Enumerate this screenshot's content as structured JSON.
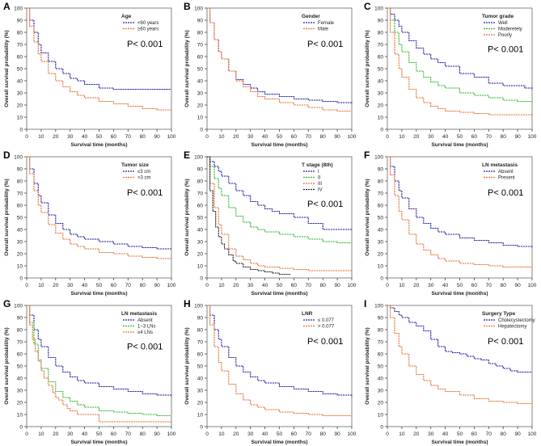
{
  "figure": {
    "x_ticks": [
      "0",
      "10",
      "20",
      "30",
      "40",
      "50",
      "60",
      "70",
      "80",
      "90",
      "100"
    ],
    "y_ticks": [
      "0",
      "10",
      "20",
      "30",
      "40",
      "50",
      "60",
      "70",
      "80",
      "90",
      "100"
    ]
  },
  "chart_data": [
    {
      "panel": "A",
      "type": "line",
      "xlabel": "Survival time (months)",
      "ylabel": "Overall survival probability (%)",
      "xlim": [
        0,
        100
      ],
      "ylim": [
        0,
        100
      ],
      "legend_title": "Age",
      "pvalue": "P< 0.001",
      "series": [
        {
          "name": "<60 years",
          "color": "#2222aa",
          "x": [
            0,
            2,
            5,
            8,
            10,
            15,
            20,
            25,
            30,
            35,
            40,
            50,
            60,
            70,
            80,
            90,
            100
          ],
          "y": [
            100,
            90,
            80,
            70,
            63,
            56,
            50,
            46,
            42,
            40,
            37,
            34,
            33,
            33,
            33,
            33,
            33
          ]
        },
        {
          "name": "≥60 years",
          "color": "#e8733a",
          "x": [
            0,
            2,
            5,
            8,
            10,
            15,
            20,
            25,
            30,
            35,
            40,
            50,
            60,
            70,
            80,
            90,
            100
          ],
          "y": [
            100,
            85,
            72,
            62,
            56,
            46,
            40,
            35,
            31,
            28,
            26,
            23,
            21,
            19,
            17,
            16,
            15
          ]
        }
      ]
    },
    {
      "panel": "B",
      "type": "line",
      "xlabel": "Survival time (months)",
      "ylabel": "Overall survival probability (%)",
      "xlim": [
        0,
        100
      ],
      "ylim": [
        0,
        100
      ],
      "legend_title": "Gender",
      "pvalue": "P< 0.001",
      "series": [
        {
          "name": "Female",
          "color": "#2222aa",
          "x": [
            0,
            2,
            5,
            8,
            10,
            15,
            20,
            25,
            30,
            35,
            40,
            50,
            60,
            70,
            80,
            90,
            100
          ],
          "y": [
            100,
            88,
            74,
            64,
            58,
            48,
            41,
            37,
            34,
            31,
            29,
            27,
            25,
            24,
            23,
            22,
            21
          ]
        },
        {
          "name": "Male",
          "color": "#e8733a",
          "x": [
            0,
            2,
            5,
            8,
            10,
            15,
            20,
            25,
            30,
            35,
            40,
            50,
            60,
            70,
            80,
            90,
            100
          ],
          "y": [
            100,
            88,
            74,
            64,
            58,
            48,
            40,
            35,
            31,
            27,
            25,
            22,
            20,
            18,
            16,
            15,
            14
          ]
        }
      ]
    },
    {
      "panel": "C",
      "type": "line",
      "xlabel": "Survival time (months)",
      "ylabel": "Overall survival probability (%)",
      "xlim": [
        0,
        100
      ],
      "ylim": [
        0,
        100
      ],
      "legend_title": "Tumor grade",
      "pvalue": "P< 0.001",
      "series": [
        {
          "name": "Well",
          "color": "#2222aa",
          "x": [
            0,
            2,
            5,
            8,
            10,
            15,
            20,
            25,
            30,
            35,
            40,
            50,
            60,
            70,
            80,
            90,
            95,
            100
          ],
          "y": [
            100,
            95,
            90,
            85,
            80,
            73,
            67,
            62,
            58,
            55,
            52,
            46,
            43,
            38,
            36,
            36,
            34,
            33
          ]
        },
        {
          "name": "Moderetely",
          "color": "#33bb33",
          "x": [
            0,
            2,
            5,
            8,
            10,
            15,
            20,
            25,
            30,
            35,
            40,
            50,
            60,
            70,
            80,
            90,
            100
          ],
          "y": [
            100,
            90,
            80,
            70,
            64,
            55,
            48,
            43,
            39,
            36,
            34,
            30,
            28,
            26,
            24,
            23,
            22
          ]
        },
        {
          "name": "Poorly",
          "color": "#e8733a",
          "x": [
            0,
            2,
            5,
            8,
            10,
            15,
            20,
            25,
            30,
            35,
            40,
            50,
            60,
            70,
            80,
            90,
            100
          ],
          "y": [
            100,
            80,
            62,
            50,
            43,
            33,
            26,
            22,
            19,
            17,
            15,
            14,
            13,
            12,
            12,
            12,
            12
          ]
        }
      ]
    },
    {
      "panel": "D",
      "type": "line",
      "xlabel": "Survival time (months)",
      "ylabel": "Overall survival probability (%)",
      "xlim": [
        0,
        100
      ],
      "ylim": [
        0,
        100
      ],
      "legend_title": "Tumor size",
      "pvalue": "P< 0.001",
      "series": [
        {
          "name": "≤3 cm",
          "color": "#2222aa",
          "x": [
            0,
            2,
            5,
            8,
            10,
            15,
            20,
            25,
            30,
            35,
            40,
            50,
            60,
            70,
            80,
            90,
            100
          ],
          "y": [
            100,
            90,
            78,
            68,
            62,
            52,
            45,
            40,
            36,
            34,
            32,
            30,
            28,
            26,
            25,
            24,
            24
          ]
        },
        {
          "name": ">3 cm",
          "color": "#e8733a",
          "x": [
            0,
            2,
            5,
            8,
            10,
            15,
            20,
            25,
            30,
            35,
            40,
            50,
            60,
            70,
            80,
            90,
            100
          ],
          "y": [
            100,
            86,
            72,
            60,
            54,
            44,
            37,
            32,
            28,
            26,
            24,
            21,
            20,
            18,
            17,
            16,
            16
          ]
        }
      ]
    },
    {
      "panel": "E",
      "type": "line",
      "xlabel": "Survival time (months)",
      "ylabel": "Overall survival probability (%)",
      "xlim": [
        0,
        100
      ],
      "ylim": [
        0,
        100
      ],
      "legend_title": "T stage (8th)",
      "pvalue": "P< 0.001",
      "series": [
        {
          "name": "I",
          "color": "#2222aa",
          "x": [
            0,
            2,
            5,
            8,
            10,
            15,
            20,
            25,
            30,
            35,
            40,
            45,
            50,
            60,
            70,
            80,
            90,
            100
          ],
          "y": [
            100,
            96,
            92,
            88,
            84,
            78,
            72,
            68,
            63,
            60,
            57,
            55,
            53,
            50,
            45,
            40,
            40,
            40
          ]
        },
        {
          "name": "II",
          "color": "#33bb33",
          "x": [
            0,
            2,
            5,
            8,
            10,
            15,
            20,
            25,
            30,
            35,
            40,
            50,
            60,
            70,
            80,
            90,
            100
          ],
          "y": [
            100,
            92,
            82,
            74,
            68,
            58,
            51,
            46,
            42,
            40,
            38,
            36,
            34,
            32,
            30,
            29,
            28
          ]
        },
        {
          "name": "III",
          "color": "#e8733a",
          "x": [
            0,
            2,
            5,
            8,
            10,
            15,
            20,
            25,
            30,
            35,
            40,
            50,
            60,
            70,
            80,
            90,
            100
          ],
          "y": [
            100,
            78,
            58,
            44,
            36,
            24,
            18,
            15,
            12,
            10,
            9,
            8,
            7,
            6,
            6,
            6,
            6
          ]
        },
        {
          "name": "IV",
          "color": "#222222",
          "x": [
            0,
            2,
            4,
            6,
            8,
            10,
            12,
            15,
            18,
            20,
            25,
            30,
            35,
            40,
            45,
            50,
            55,
            58
          ],
          "y": [
            100,
            72,
            55,
            42,
            34,
            28,
            24,
            19,
            14,
            12,
            9,
            7,
            6,
            5,
            4,
            3,
            3,
            3
          ]
        }
      ]
    },
    {
      "panel": "F",
      "type": "line",
      "xlabel": "Survival time (months)",
      "ylabel": "Overall survival probability (%)",
      "xlim": [
        0,
        100
      ],
      "ylim": [
        0,
        100
      ],
      "legend_title": "LN metastasis",
      "pvalue": "P< 0.001",
      "series": [
        {
          "name": "Absent",
          "color": "#2222aa",
          "x": [
            0,
            2,
            5,
            8,
            10,
            15,
            20,
            25,
            30,
            35,
            40,
            50,
            60,
            70,
            80,
            90,
            100
          ],
          "y": [
            100,
            92,
            80,
            72,
            66,
            57,
            50,
            45,
            41,
            38,
            36,
            33,
            31,
            29,
            27,
            26,
            25
          ]
        },
        {
          "name": "Present",
          "color": "#e8733a",
          "x": [
            0,
            2,
            5,
            8,
            10,
            15,
            20,
            25,
            30,
            35,
            40,
            50,
            60,
            70,
            80,
            90,
            100
          ],
          "y": [
            100,
            85,
            68,
            55,
            48,
            36,
            28,
            23,
            19,
            16,
            14,
            12,
            11,
            10,
            9,
            9,
            8
          ]
        }
      ]
    },
    {
      "panel": "G",
      "type": "line",
      "xlabel": "Survival time (months)",
      "ylabel": "Overall survival probability (%)",
      "xlim": [
        0,
        100
      ],
      "ylim": [
        0,
        100
      ],
      "legend_title": "LN metastasis",
      "pvalue": "P< 0.001",
      "series": [
        {
          "name": "Absent",
          "color": "#2222aa",
          "x": [
            0,
            2,
            5,
            8,
            10,
            15,
            20,
            25,
            30,
            35,
            40,
            50,
            60,
            70,
            80,
            90,
            100
          ],
          "y": [
            100,
            92,
            80,
            72,
            66,
            57,
            50,
            45,
            41,
            38,
            36,
            33,
            31,
            29,
            27,
            26,
            25
          ]
        },
        {
          "name": "1~3 LNs",
          "color": "#33bb33",
          "x": [
            0,
            2,
            5,
            8,
            10,
            15,
            20,
            25,
            30,
            35,
            40,
            50,
            60,
            70,
            80,
            90,
            100
          ],
          "y": [
            100,
            86,
            68,
            55,
            48,
            37,
            29,
            24,
            21,
            18,
            16,
            13,
            12,
            11,
            10,
            9,
            9
          ]
        },
        {
          "name": "≥4 LNs",
          "color": "#e8733a",
          "x": [
            0,
            2,
            4,
            6,
            8,
            10,
            12,
            15,
            18,
            20,
            22,
            25,
            28,
            30,
            35,
            40,
            45,
            50,
            60,
            70,
            80,
            90,
            100
          ],
          "y": [
            100,
            84,
            72,
            62,
            54,
            46,
            40,
            34,
            28,
            24,
            22,
            18,
            15,
            13,
            10,
            10,
            10,
            4,
            4,
            4,
            4,
            4,
            4
          ]
        }
      ]
    },
    {
      "panel": "H",
      "type": "line",
      "xlabel": "Survival time (months)",
      "ylabel": "Overall survival probability (%)",
      "xlim": [
        0,
        100
      ],
      "ylim": [
        0,
        100
      ],
      "legend_title": "LNR",
      "pvalue": "P< 0.001",
      "series": [
        {
          "name": "≤ 0.077",
          "color": "#2222aa",
          "x": [
            0,
            2,
            5,
            8,
            10,
            15,
            20,
            25,
            30,
            35,
            40,
            50,
            60,
            70,
            80,
            90,
            100
          ],
          "y": [
            100,
            92,
            80,
            72,
            66,
            57,
            50,
            45,
            41,
            38,
            36,
            33,
            31,
            29,
            27,
            26,
            25
          ]
        },
        {
          "name": "> 0.077",
          "color": "#e8733a",
          "x": [
            0,
            2,
            5,
            8,
            10,
            15,
            20,
            25,
            30,
            35,
            40,
            50,
            60,
            70,
            80,
            90,
            100
          ],
          "y": [
            100,
            84,
            66,
            53,
            46,
            35,
            27,
            22,
            18,
            16,
            14,
            12,
            11,
            10,
            9,
            9,
            8
          ]
        }
      ]
    },
    {
      "panel": "I",
      "type": "line",
      "xlabel": "Survival time (months)",
      "ylabel": "Overall survival probability (%)",
      "xlim": [
        0,
        100
      ],
      "ylim": [
        0,
        100
      ],
      "legend_title": "Surgery Type",
      "pvalue": "P< 0.001",
      "series": [
        {
          "name": "Cholecystectomy",
          "color": "#2222aa",
          "x": [
            0,
            2,
            5,
            8,
            10,
            15,
            20,
            25,
            30,
            35,
            40,
            45,
            50,
            55,
            60,
            65,
            70,
            75,
            80,
            85,
            90,
            95,
            100
          ],
          "y": [
            100,
            98,
            95,
            92,
            90,
            86,
            83,
            79,
            72,
            66,
            62,
            61,
            60,
            58,
            56,
            55,
            52,
            50,
            48,
            46,
            45,
            45,
            45
          ]
        },
        {
          "name": "Hepatectomy",
          "color": "#e8733a",
          "x": [
            0,
            2,
            5,
            8,
            10,
            15,
            20,
            25,
            30,
            35,
            40,
            50,
            60,
            70,
            80,
            90,
            100
          ],
          "y": [
            100,
            90,
            77,
            66,
            60,
            50,
            43,
            38,
            34,
            31,
            29,
            26,
            23,
            21,
            20,
            19,
            18
          ]
        }
      ]
    }
  ]
}
